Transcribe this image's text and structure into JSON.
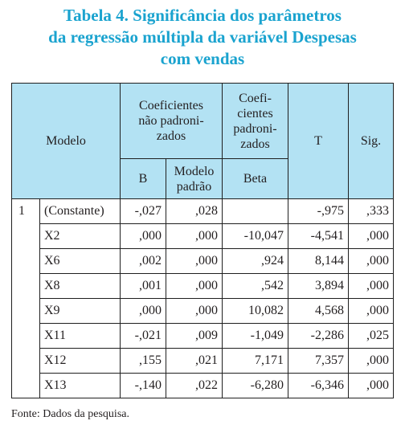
{
  "title": {
    "line1": "Tabela 4. Significância dos parâmetros",
    "line2": "da regressão múltipla da variável Despesas",
    "line3": "com vendas"
  },
  "header": {
    "modelo": "Modelo",
    "coef_nao_pad_l1": "Coeficientes",
    "coef_nao_pad_l2": "não padroni-",
    "coef_nao_pad_l3": "zados",
    "coef_pad_l1": "Coefi-",
    "coef_pad_l2": "cientes",
    "coef_pad_l3": "padroni-",
    "coef_pad_l4": "zados",
    "t": "T",
    "sig": "Sig.",
    "b": "B",
    "modelo_padrao_l1": "Modelo",
    "modelo_padrao_l2": "padrão",
    "beta": "Beta"
  },
  "model_index": "1",
  "rows": [
    {
      "var": "(Constante)",
      "b": "-,027",
      "se": ",028",
      "beta": "",
      "t": "-,975",
      "sig": ",333"
    },
    {
      "var": "X2",
      "b": ",000",
      "se": ",000",
      "beta": "-10,047",
      "t": "-4,541",
      "sig": ",000"
    },
    {
      "var": "X6",
      "b": ",002",
      "se": ",000",
      "beta": ",924",
      "t": "8,144",
      "sig": ",000"
    },
    {
      "var": "X8",
      "b": ",001",
      "se": ",000",
      "beta": ",542",
      "t": "3,894",
      "sig": ",000"
    },
    {
      "var": "X9",
      "b": ",000",
      "se": ",000",
      "beta": "10,082",
      "t": "4,568",
      "sig": ",000"
    },
    {
      "var": "X11",
      "b": "-,021",
      "se": ",009",
      "beta": "-1,049",
      "t": "-2,286",
      "sig": ",025"
    },
    {
      "var": "X12",
      "b": ",155",
      "se": ",021",
      "beta": "7,171",
      "t": "7,357",
      "sig": ",000"
    },
    {
      "var": "X13",
      "b": "-,140",
      "se": ",022",
      "beta": "-6,280",
      "t": "-6,346",
      "sig": ",000"
    }
  ],
  "source": "Fonte: Dados da pesquisa.",
  "colors": {
    "title": "#1aa3cf",
    "header_bg": "#b3e2f3"
  }
}
